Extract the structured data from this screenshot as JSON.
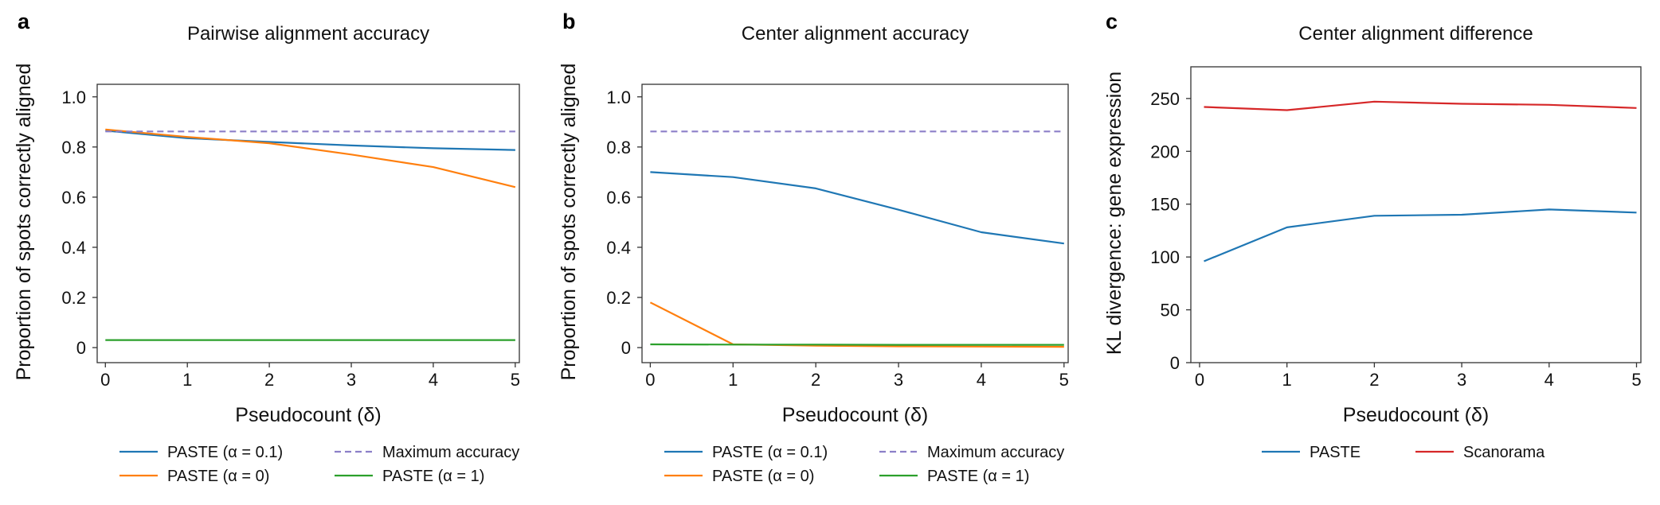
{
  "chart_data": [
    {
      "id": "a",
      "type": "line",
      "panel_label": "a",
      "title": "Pairwise alignment accuracy",
      "xlabel": "Pseudocount (δ)",
      "ylabel": "Proportion of spots correctly aligned",
      "xlim": [
        -0.1,
        5.05
      ],
      "ylim": [
        -0.06,
        1.05
      ],
      "xticks": [
        0,
        1,
        2,
        3,
        4,
        5
      ],
      "yticks": [
        0,
        0.2,
        0.4,
        0.6,
        0.8,
        1.0
      ],
      "ytick_labels": [
        "0",
        "0.2",
        "0.4",
        "0.6",
        "0.8",
        "1.0"
      ],
      "x": [
        0,
        1,
        2,
        3,
        4,
        5
      ],
      "series": [
        {
          "name": "PASTE (α = 0.1)",
          "color": "#1f77b4",
          "dash": "solid",
          "values": [
            0.865,
            0.835,
            0.82,
            0.806,
            0.795,
            0.788
          ]
        },
        {
          "name": "PASTE (α = 0)",
          "color": "#ff7f0e",
          "dash": "solid",
          "values": [
            0.87,
            0.84,
            0.815,
            0.77,
            0.72,
            0.64
          ]
        },
        {
          "name": "Maximum accuracy",
          "color": "#8c7fc8",
          "dash": "dashed",
          "values": [
            0.862,
            0.862,
            0.862,
            0.862,
            0.862,
            0.862
          ]
        },
        {
          "name": "PASTE (α = 1)",
          "color": "#2ca02c",
          "dash": "solid",
          "values": [
            0.03,
            0.03,
            0.03,
            0.03,
            0.03,
            0.03
          ]
        }
      ],
      "legend": "bottom"
    },
    {
      "id": "b",
      "type": "line",
      "panel_label": "b",
      "title": "Center alignment accuracy",
      "xlabel": "Pseudocount (δ)",
      "ylabel": "Proportion of spots correctly aligned",
      "xlim": [
        -0.1,
        5.05
      ],
      "ylim": [
        -0.06,
        1.05
      ],
      "xticks": [
        0,
        1,
        2,
        3,
        4,
        5
      ],
      "yticks": [
        0,
        0.2,
        0.4,
        0.6,
        0.8,
        1.0
      ],
      "ytick_labels": [
        "0",
        "0.2",
        "0.4",
        "0.6",
        "0.8",
        "1.0"
      ],
      "x": [
        0,
        1,
        2,
        3,
        4,
        5
      ],
      "series": [
        {
          "name": "PASTE (α = 0.1)",
          "color": "#1f77b4",
          "dash": "solid",
          "values": [
            0.7,
            0.68,
            0.635,
            0.55,
            0.46,
            0.415
          ]
        },
        {
          "name": "PASTE (α = 0)",
          "color": "#ff7f0e",
          "dash": "solid",
          "values": [
            0.18,
            0.013,
            0.008,
            0.005,
            0.004,
            0.003
          ]
        },
        {
          "name": "Maximum accuracy",
          "color": "#8c7fc8",
          "dash": "dashed",
          "values": [
            0.862,
            0.862,
            0.862,
            0.862,
            0.862,
            0.862
          ]
        },
        {
          "name": "PASTE (α = 1)",
          "color": "#2ca02c",
          "dash": "solid",
          "values": [
            0.013,
            0.012,
            0.012,
            0.011,
            0.011,
            0.011
          ]
        }
      ],
      "legend": "bottom"
    },
    {
      "id": "c",
      "type": "line",
      "panel_label": "c",
      "title": "Center alignment difference",
      "xlabel": "Pseudocount (δ)",
      "ylabel": "KL divergence: gene expression",
      "xlim": [
        -0.1,
        5.05
      ],
      "ylim": [
        0,
        280
      ],
      "xticks": [
        0,
        1,
        2,
        3,
        4,
        5
      ],
      "yticks": [
        0,
        50,
        100,
        150,
        200,
        250
      ],
      "ytick_labels": [
        "0",
        "50",
        "100",
        "150",
        "200",
        "250"
      ],
      "x": [
        0.05,
        1,
        2,
        3,
        4,
        5
      ],
      "series": [
        {
          "name": "PASTE",
          "color": "#1f77b4",
          "dash": "solid",
          "values": [
            96,
            128,
            139,
            140,
            145,
            142
          ]
        },
        {
          "name": "Scanorama",
          "color": "#d62728",
          "dash": "solid",
          "values": [
            242,
            239,
            247,
            245,
            244,
            241
          ]
        }
      ],
      "legend": "bottom"
    }
  ]
}
